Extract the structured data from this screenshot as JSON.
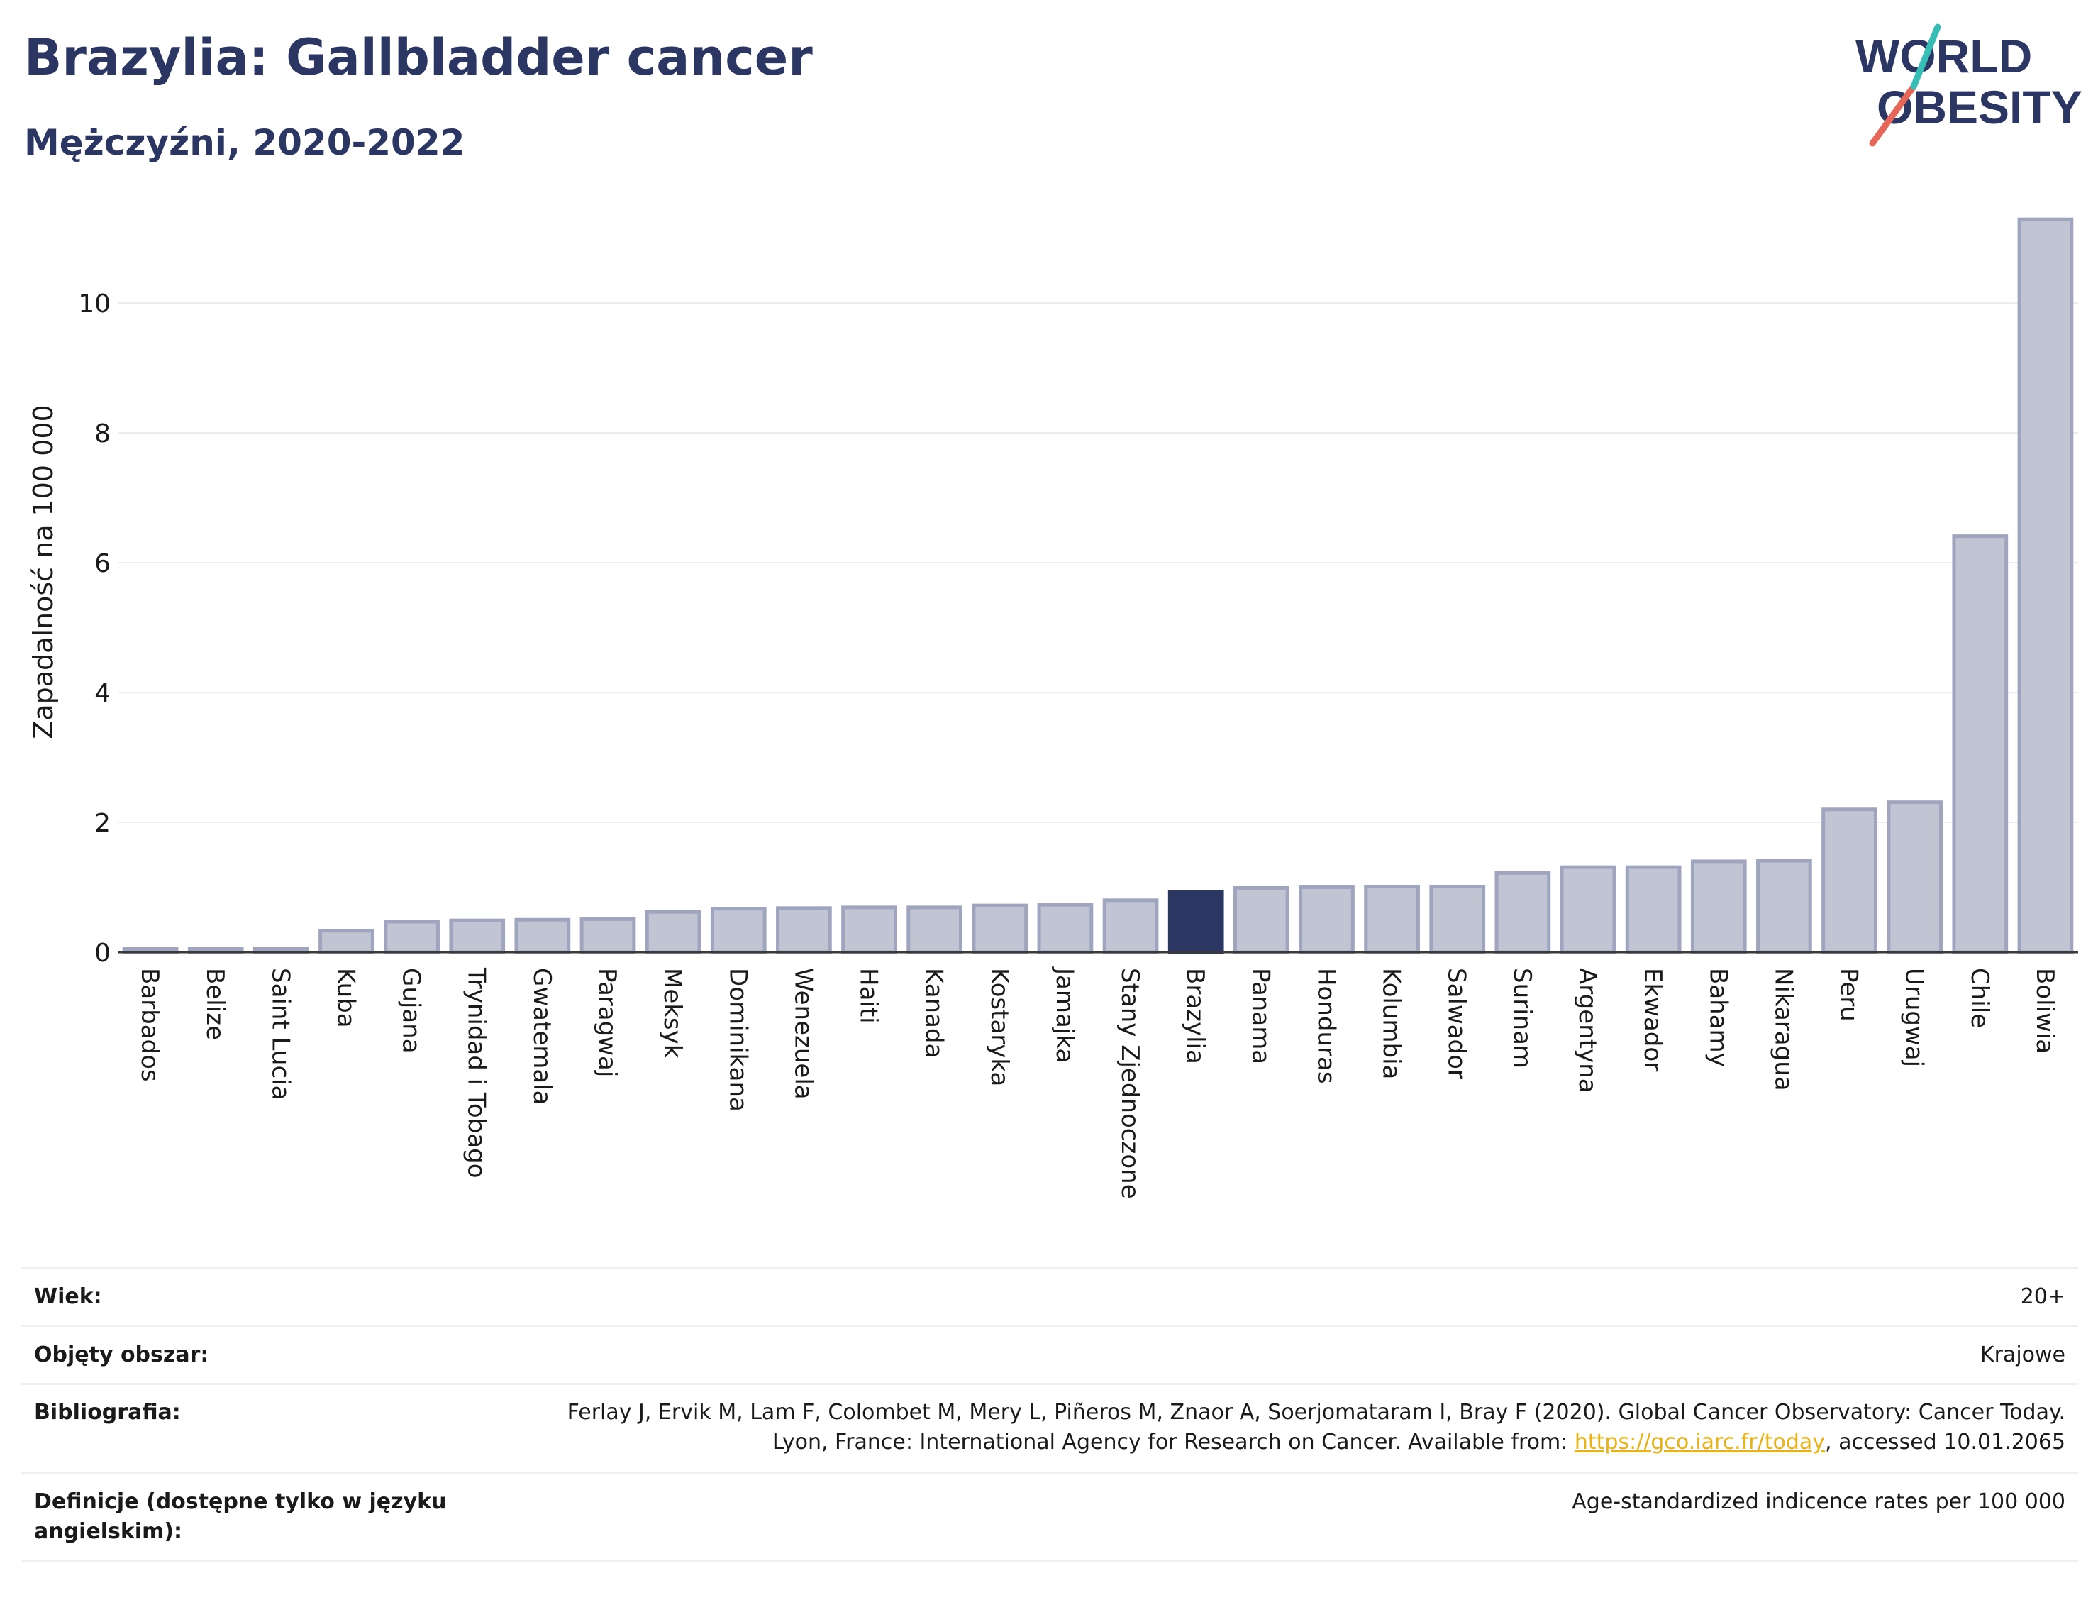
{
  "header": {
    "title": "Brazylia: Gallbladder cancer",
    "subtitle": "Mężczyźni, 2020-2022",
    "logo_line1": "WORLD",
    "logo_line2": "OBESITY"
  },
  "colors": {
    "bar": "#c1c5d3",
    "bar_border": "#9fa5be",
    "highlight": "#2c3663",
    "logo_text": "#2c3663",
    "logo_red": "#e4675a",
    "logo_teal": "#37bdb6",
    "link": "#e8b21a"
  },
  "chart_data": {
    "type": "bar",
    "title": "Brazylia: Gallbladder cancer",
    "subtitle": "Mężczyźni, 2020-2022",
    "ylabel": "Zapadalność na 100 000",
    "xlabel": "",
    "ylim": [
      0,
      11.5
    ],
    "yticks": [
      0,
      2,
      4,
      6,
      8,
      10
    ],
    "grid": true,
    "highlight": "Brazylia",
    "categories": [
      "Barbados",
      "Belize",
      "Saint Lucia",
      "Kuba",
      "Gujana",
      "Trynidad i Tobago",
      "Gwatemala",
      "Paragwaj",
      "Meksyk",
      "Dominikana",
      "Wenezuela",
      "Haiti",
      "Kanada",
      "Kostaryka",
      "Jamajka",
      "Stany Zjednoczone",
      "Brazylia",
      "Panama",
      "Honduras",
      "Kolumbia",
      "Salwador",
      "Surinam",
      "Argentyna",
      "Ekwador",
      "Bahamy",
      "Nikaragua",
      "Peru",
      "Urugwaj",
      "Chile",
      "Boliwia"
    ],
    "values": [
      0.05,
      0.05,
      0.05,
      0.33,
      0.47,
      0.49,
      0.5,
      0.51,
      0.62,
      0.67,
      0.68,
      0.69,
      0.69,
      0.72,
      0.73,
      0.8,
      0.93,
      0.99,
      1.0,
      1.01,
      1.01,
      1.22,
      1.31,
      1.31,
      1.4,
      1.41,
      2.2,
      2.31,
      6.41,
      11.29
    ]
  },
  "meta": {
    "age_label": "Wiek:",
    "age_value": "20+",
    "coverage_label": "Objęty obszar:",
    "coverage_value": "Krajowe",
    "bib_label": "Bibliografia:",
    "bib_text_before": "Ferlay J, Ervik M, Lam F, Colombet M, Mery L, Piñeros M, Znaor A, Soerjomataram I, Bray F (2020). Global Cancer Observatory: Cancer Today. Lyon, France: International Agency for Research on Cancer. Available from: ",
    "bib_link": "https://gco.iarc.fr/today",
    "bib_text_after": ", accessed 10.01.2065",
    "def_label": "Definicje (dostępne tylko w języku angielskim):",
    "def_value": "Age-standardized indicence rates per 100 000"
  }
}
